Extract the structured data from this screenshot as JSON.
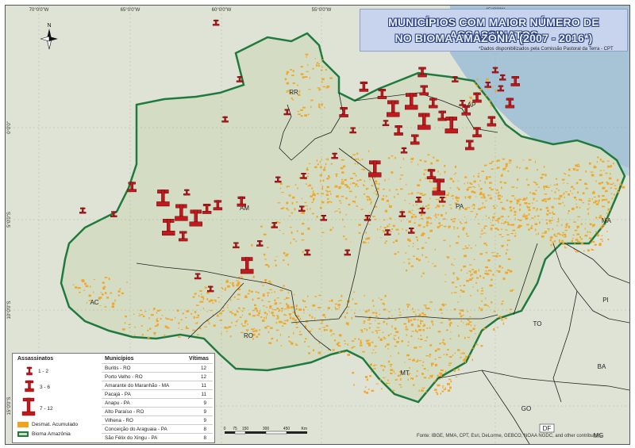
{
  "title": {
    "line1": "MUNICÍPIOS COM MAIOR NÚMERO DE ASSASSINATOS",
    "line2": "NO BIOMA AMAZÔNIA (2007 - 2016*)"
  },
  "source_cpt": "*Dados disponibilizados pela Comissão Pastoral da Terra - CPT",
  "attribution": "Fonte: IBGE, MMA, CPT, Esri, DeLorme, GEBCO, NOAA NGDC, and other contributors",
  "compass": {
    "north_label": "N"
  },
  "coordinates": {
    "top": [
      "70°0'0\"W",
      "65°0'0\"W",
      "60°0'0\"W",
      "55°0'0\"W",
      "45°0'0\"W"
    ],
    "left": [
      "0°0'0\"",
      "5°0'0\"S",
      "10°0'0\"S",
      "15°0'0\"S"
    ]
  },
  "states": [
    "RR",
    "AP",
    "AM",
    "PA",
    "MA",
    "AC",
    "RO",
    "MT",
    "TO",
    "PI",
    "BA",
    "GO",
    "MG",
    "DF"
  ],
  "legend": {
    "heading_assassinatos": "Assassinatos",
    "heading_municipios": "Municípios",
    "heading_vitimas": "Vítimas",
    "classes": [
      "1 - 2",
      "3 - 6",
      "7 - 12"
    ],
    "desmatamento": "Desmat. Acumulado",
    "bioma": "Bioma Amazônia",
    "rows": [
      {
        "municipio": "Buritis - RO",
        "vitimas": "12"
      },
      {
        "municipio": "Porto Velho - RO",
        "vitimas": "12"
      },
      {
        "municipio": "Amarante do Maranhão - MA",
        "vitimas": "11"
      },
      {
        "municipio": "Pacajá - PA",
        "vitimas": "11"
      },
      {
        "municipio": "Anapu - PA",
        "vitimas": "9"
      },
      {
        "municipio": "Alto Paraíso - RO",
        "vitimas": "9"
      },
      {
        "municipio": "Vilhena - RO",
        "vitimas": "9"
      },
      {
        "municipio": "Conceição do Araguaia - PA",
        "vitimas": "8"
      },
      {
        "municipio": "São Félix do Xingu - PA",
        "vitimas": "8"
      }
    ]
  },
  "scale": {
    "ticks": [
      "0",
      "75",
      "150",
      "300",
      "450"
    ],
    "unit": "Km"
  },
  "colors": {
    "biome_fill": "#d9e0cc",
    "biome_border": "#1f7a3d",
    "outside": "#dde2d4",
    "ocean": "#a7c4d6",
    "deforestation": "#f2a31d",
    "symbol": "#c0191e",
    "title_text": "#e8f0ff",
    "title_bg": "#c8d3ee"
  },
  "markers": [
    {
      "lon": -60.7,
      "lat": 2.8,
      "cls": 2
    },
    {
      "lon": -59.4,
      "lat": 2.0,
      "cls": 1
    },
    {
      "lon": -60.3,
      "lat": 0.8,
      "cls": 1
    },
    {
      "lon": -59.0,
      "lat": -2.3,
      "cls": 1
    },
    {
      "lon": -59.8,
      "lat": -4.5,
      "cls": 1
    },
    {
      "lon": -56.4,
      "lat": -4.1,
      "cls": 1
    },
    {
      "lon": -53.3,
      "lat": -4.1,
      "cls": 2
    },
    {
      "lon": -52.2,
      "lat": -2.7,
      "cls": 2
    },
    {
      "lon": -51.2,
      "lat": -3.1,
      "cls": 2
    },
    {
      "lon": -50.6,
      "lat": -3.9,
      "cls": 3
    },
    {
      "lon": -49.6,
      "lat": -3.5,
      "cls": 3
    },
    {
      "lon": -48.9,
      "lat": -2.9,
      "cls": 2
    },
    {
      "lon": -48.4,
      "lat": -3.6,
      "cls": 2
    },
    {
      "lon": -47.9,
      "lat": -4.3,
      "cls": 2
    },
    {
      "lon": -48.9,
      "lat": -4.6,
      "cls": 3
    },
    {
      "lon": -47.4,
      "lat": -4.8,
      "cls": 3
    },
    {
      "lon": -46.6,
      "lat": -4.0,
      "cls": 2
    },
    {
      "lon": -46.0,
      "lat": -3.3,
      "cls": 2
    },
    {
      "lon": -45.4,
      "lat": -2.6,
      "cls": 1
    },
    {
      "lon": -44.7,
      "lat": -2.8,
      "cls": 1
    },
    {
      "lon": -44.2,
      "lat": -3.6,
      "cls": 2
    },
    {
      "lon": -46.0,
      "lat": -5.2,
      "cls": 2
    },
    {
      "lon": -46.4,
      "lat": -5.9,
      "cls": 2
    },
    {
      "lon": -45.2,
      "lat": -4.6,
      "cls": 2
    },
    {
      "lon": -51.6,
      "lat": -7.2,
      "cls": 3
    },
    {
      "lon": -48.5,
      "lat": -7.5,
      "cls": 2
    },
    {
      "lon": -48.1,
      "lat": -8.2,
      "cls": 3
    },
    {
      "lon": -49.4,
      "lat": -5.6,
      "cls": 2
    },
    {
      "lon": -50.0,
      "lat": -6.2,
      "cls": 1
    },
    {
      "lon": -50.3,
      "lat": -5.1,
      "cls": 2
    },
    {
      "lon": -51.0,
      "lat": -4.7,
      "cls": 1
    },
    {
      "lon": -53.8,
      "lat": -6.5,
      "cls": 1
    },
    {
      "lon": -55.5,
      "lat": -7.6,
      "cls": 1
    },
    {
      "lon": -57.1,
      "lat": -10.3,
      "cls": 1
    },
    {
      "lon": -55.3,
      "lat": -11.8,
      "cls": 1
    },
    {
      "lon": -54.4,
      "lat": -9.9,
      "cls": 1
    },
    {
      "lon": -52.0,
      "lat": -9.9,
      "cls": 1
    },
    {
      "lon": -50.9,
      "lat": -10.7,
      "cls": 1
    },
    {
      "lon": -49.6,
      "lat": -10.6,
      "cls": 1
    },
    {
      "lon": -49.2,
      "lat": -8.9,
      "cls": 1
    },
    {
      "lon": -47.9,
      "lat": -8.9,
      "cls": 1
    },
    {
      "lon": -53.1,
      "lat": -11.8,
      "cls": 1
    },
    {
      "lon": -59.2,
      "lat": -11.4,
      "cls": 1
    },
    {
      "lon": -58.6,
      "lat": -12.5,
      "cls": 3
    },
    {
      "lon": -60.6,
      "lat": -13.8,
      "cls": 1
    },
    {
      "lon": -61.3,
      "lat": -13.1,
      "cls": 1
    },
    {
      "lon": -58.9,
      "lat": -9.0,
      "cls": 2
    },
    {
      "lon": -63.2,
      "lat": -8.8,
      "cls": 3
    },
    {
      "lon": -62.2,
      "lat": -9.6,
      "cls": 3
    },
    {
      "lon": -62.9,
      "lat": -10.4,
      "cls": 3
    },
    {
      "lon": -62.1,
      "lat": -10.9,
      "cls": 2
    },
    {
      "lon": -61.4,
      "lat": -9.9,
      "cls": 3
    },
    {
      "lon": -60.8,
      "lat": -9.4,
      "cls": 2
    },
    {
      "lon": -60.2,
      "lat": -9.2,
      "cls": 2
    },
    {
      "lon": -61.9,
      "lat": -8.5,
      "cls": 1
    },
    {
      "lon": -64.9,
      "lat": -8.2,
      "cls": 2
    },
    {
      "lon": -67.6,
      "lat": -9.5,
      "cls": 1
    },
    {
      "lon": -65.9,
      "lat": -9.7,
      "cls": 1
    },
    {
      "lon": -56.9,
      "lat": -7.8,
      "cls": 1
    },
    {
      "lon": -45.0,
      "lat": -1.8,
      "cls": 1
    },
    {
      "lon": -44.6,
      "lat": -2.2,
      "cls": 1
    },
    {
      "lon": -43.9,
      "lat": -2.4,
      "cls": 2
    },
    {
      "lon": -46.8,
      "lat": -3.6,
      "cls": 1
    },
    {
      "lon": -47.2,
      "lat": -2.3,
      "cls": 1
    },
    {
      "lon": -49.0,
      "lat": -1.9,
      "cls": 2
    },
    {
      "lon": -52.8,
      "lat": -5.1,
      "cls": 1
    },
    {
      "lon": -55.6,
      "lat": -9.4,
      "cls": 1
    },
    {
      "lon": -57.9,
      "lat": -11.3,
      "cls": 1
    },
    {
      "lon": -50.1,
      "lat": -9.7,
      "cls": 1
    },
    {
      "lon": -49.0,
      "lat": -9.5,
      "cls": 1
    }
  ]
}
